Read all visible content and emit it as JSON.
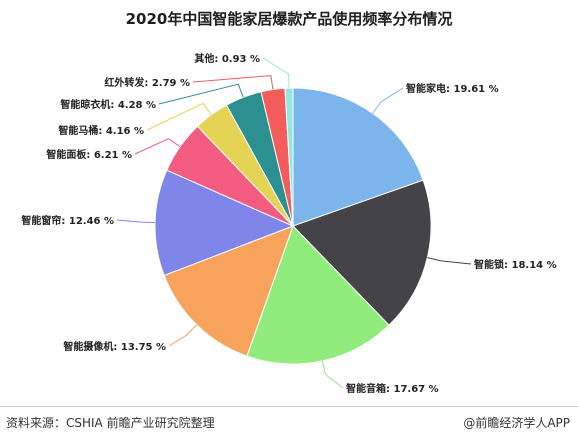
{
  "title": "2020年中国智能家居爆款产品使用频率分布情况",
  "source": "资料来源：CSHIA 前瞻产业研究院整理",
  "credit": "@前瞻经济学人APP",
  "chart_data": {
    "type": "pie",
    "title": "2020年中国智能家居爆款产品使用频率分布情况",
    "unit": "%",
    "slices": [
      {
        "name": "智能家电",
        "value": 19.61,
        "display": "智能家电: 19.61 %",
        "color": "#7cb5ec"
      },
      {
        "name": "智能锁",
        "value": 18.14,
        "display": "智能锁: 18.14 %",
        "color": "#434348"
      },
      {
        "name": "智能音箱",
        "value": 17.67,
        "display": "智能音箱: 17.67 %",
        "color": "#90ed7d"
      },
      {
        "name": "智能摄像机",
        "value": 13.75,
        "display": "智能摄像机: 13.75 %",
        "color": "#f7a35c"
      },
      {
        "name": "智能窗帘",
        "value": 12.46,
        "display": "智能窗帘: 12.46 %",
        "color": "#8085e9"
      },
      {
        "name": "智能面板",
        "value": 6.21,
        "display": "智能面板: 6.21 %",
        "color": "#f15c80"
      },
      {
        "name": "智能马桶",
        "value": 4.16,
        "display": "智能马桶: 4.16 %",
        "color": "#e4d354"
      },
      {
        "name": "智能晾衣机",
        "value": 4.28,
        "display": "智能晾衣机: 4.28 %",
        "color": "#2b908f"
      },
      {
        "name": "红外转发",
        "value": 2.79,
        "display": "红外转发: 2.79 %",
        "color": "#f45b5b"
      },
      {
        "name": "其他",
        "value": 0.93,
        "display": "其他: 0.93 %",
        "color": "#91e8e1"
      }
    ]
  }
}
